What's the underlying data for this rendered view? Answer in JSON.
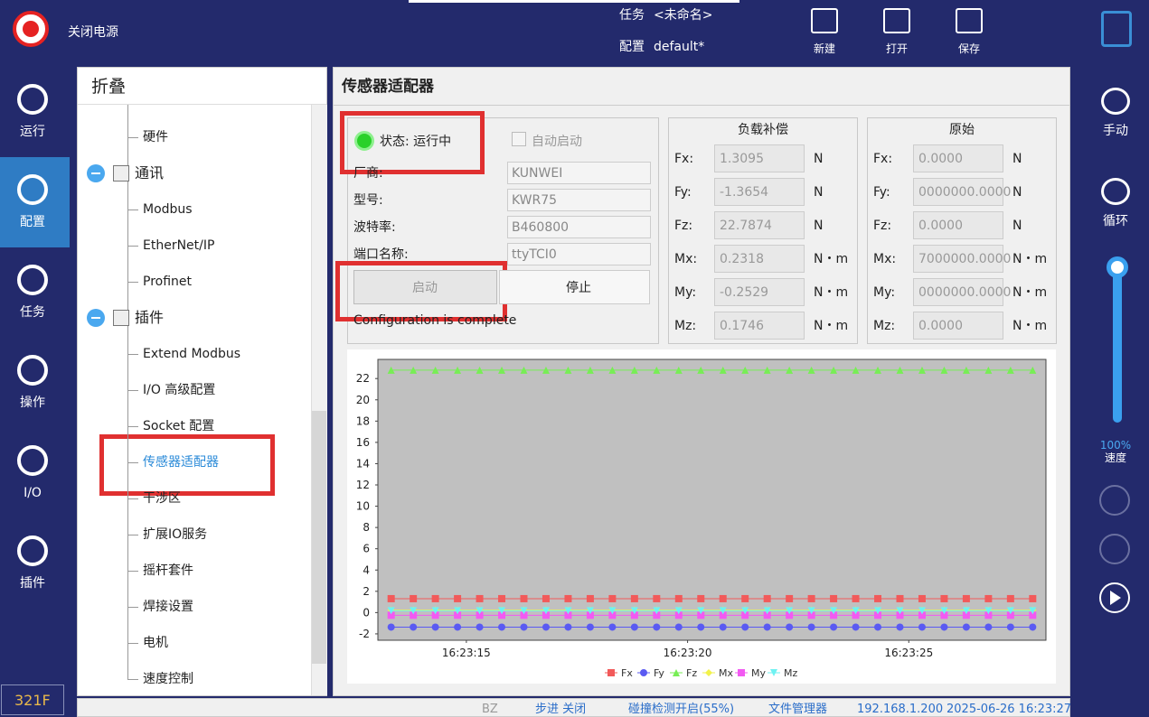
{
  "header": {
    "power_label": "关闭电源",
    "task_label": "任务",
    "task_value": "<未命名>",
    "config_label": "配置",
    "config_value": "default*",
    "buttons": [
      "新建",
      "打开",
      "保存"
    ]
  },
  "nav": {
    "items": [
      "运行",
      "配置",
      "任务",
      "操作",
      "I/O",
      "插件"
    ],
    "selected": 1,
    "version": "321F"
  },
  "right_nav": {
    "items": [
      "手动",
      "循环"
    ],
    "speed_value": "100%",
    "speed_label": "速度"
  },
  "tree": {
    "title": "折叠",
    "top_items": [
      "硬件"
    ],
    "groups": [
      {
        "label": "通讯",
        "children": [
          "Modbus",
          "EtherNet/IP",
          "Profinet"
        ]
      },
      {
        "label": "插件",
        "children": [
          "Extend Modbus",
          "I/O 高级配置",
          "Socket 配置",
          "传感器适配器",
          "干涉区",
          "扩展IO服务",
          "摇杆套件",
          "焊接设置",
          "电机",
          "速度控制"
        ],
        "selected_child": 3
      }
    ]
  },
  "panel": {
    "title": "传感器适配器",
    "status": "状态: 运行中",
    "auto_start": "自动启动",
    "fields": [
      {
        "label": "厂商:",
        "value": "KUNWEI"
      },
      {
        "label": "型号:",
        "value": "KWR75"
      },
      {
        "label": "波特率:",
        "value": "B460800"
      },
      {
        "label": "端口名称:",
        "value": "ttyTCI0"
      }
    ],
    "start_button": "启动",
    "stop_button": "停止",
    "message": "Configuration is complete",
    "compensation": {
      "title": "负载补偿",
      "rows": [
        {
          "label": "Fx:",
          "value": "1.3095",
          "unit": "N"
        },
        {
          "label": "Fy:",
          "value": "-1.3654",
          "unit": "N"
        },
        {
          "label": "Fz:",
          "value": "22.7874",
          "unit": "N"
        },
        {
          "label": "Mx:",
          "value": "0.2318",
          "unit": "N・m"
        },
        {
          "label": "My:",
          "value": "-0.2529",
          "unit": "N・m"
        },
        {
          "label": "Mz:",
          "value": "0.1746",
          "unit": "N・m"
        }
      ]
    },
    "raw": {
      "title": "原始",
      "rows": [
        {
          "label": "Fx:",
          "value": "0.0000",
          "unit": "N"
        },
        {
          "label": "Fy:",
          "value": "0000000.0000",
          "unit": "N"
        },
        {
          "label": "Fz:",
          "value": "0.0000",
          "unit": "N"
        },
        {
          "label": "Mx:",
          "value": "7000000.0000",
          "unit": "N・m"
        },
        {
          "label": "My:",
          "value": "0000000.0000",
          "unit": "N・m"
        },
        {
          "label": "Mz:",
          "value": "0.0000",
          "unit": "N・m"
        }
      ]
    }
  },
  "chart_data": {
    "type": "line",
    "x": [
      59593.3,
      59593.8,
      59594.3,
      59594.8,
      59595.3,
      59595.8,
      59596.3,
      59596.8,
      59597.3,
      59597.8,
      59598.3,
      59598.8,
      59599.3,
      59599.8,
      59600.3,
      59600.8,
      59601.3,
      59601.8,
      59602.3,
      59602.8,
      59603.3,
      59603.8,
      59604.3,
      59604.8,
      59605.3,
      59605.8,
      59606.3,
      59606.8,
      59607.3,
      59607.8
    ],
    "xlim": [
      59593.0,
      59608.1
    ],
    "xticks": [
      {
        "value": 59595,
        "label": "16:23:15"
      },
      {
        "value": 59600,
        "label": "16:23:20"
      },
      {
        "value": 59605,
        "label": "16:23:25"
      }
    ],
    "ylim": [
      -2.6,
      23.8
    ],
    "yticks": [
      -2,
      0,
      2,
      4,
      6,
      8,
      10,
      12,
      14,
      16,
      18,
      20,
      22
    ],
    "series": [
      {
        "name": "Fx",
        "color": "#f25a5a",
        "marker": "square",
        "values": [
          1.3095,
          1.3095,
          1.3095,
          1.3095,
          1.3095,
          1.3095,
          1.3095,
          1.3095,
          1.3095,
          1.3095,
          1.3095,
          1.3095,
          1.3095,
          1.3095,
          1.3095,
          1.3095,
          1.3095,
          1.3095,
          1.3095,
          1.3095,
          1.3095,
          1.3095,
          1.3095,
          1.3095,
          1.3095,
          1.3095,
          1.3095,
          1.3095,
          1.3095,
          1.3095
        ]
      },
      {
        "name": "Fy",
        "color": "#5a5af2",
        "marker": "circle",
        "values": [
          -1.3654,
          -1.3654,
          -1.3654,
          -1.3654,
          -1.3654,
          -1.3654,
          -1.3654,
          -1.3654,
          -1.3654,
          -1.3654,
          -1.3654,
          -1.3654,
          -1.3654,
          -1.3654,
          -1.3654,
          -1.3654,
          -1.3654,
          -1.3654,
          -1.3654,
          -1.3654,
          -1.3654,
          -1.3654,
          -1.3654,
          -1.3654,
          -1.3654,
          -1.3654,
          -1.3654,
          -1.3654,
          -1.3654,
          -1.3654
        ]
      },
      {
        "name": "Fz",
        "color": "#77ee55",
        "marker": "triangle",
        "values": [
          22.7874,
          22.7874,
          22.7874,
          22.7874,
          22.7874,
          22.7874,
          22.7874,
          22.7874,
          22.7874,
          22.7874,
          22.7874,
          22.7874,
          22.7874,
          22.7874,
          22.7874,
          22.7874,
          22.7874,
          22.7874,
          22.7874,
          22.7874,
          22.7874,
          22.7874,
          22.7874,
          22.7874,
          22.7874,
          22.7874,
          22.7874,
          22.7874,
          22.7874,
          22.7874
        ]
      },
      {
        "name": "Mx",
        "color": "#f2f24a",
        "marker": "diamond",
        "values": [
          0.2318,
          0.2318,
          0.2318,
          0.2318,
          0.2318,
          0.2318,
          0.2318,
          0.2318,
          0.2318,
          0.2318,
          0.2318,
          0.2318,
          0.2318,
          0.2318,
          0.2318,
          0.2318,
          0.2318,
          0.2318,
          0.2318,
          0.2318,
          0.2318,
          0.2318,
          0.2318,
          0.2318,
          0.2318,
          0.2318,
          0.2318,
          0.2318,
          0.2318,
          0.2318
        ]
      },
      {
        "name": "My",
        "color": "#f25af2",
        "marker": "square",
        "values": [
          -0.2529,
          -0.2529,
          -0.2529,
          -0.2529,
          -0.2529,
          -0.2529,
          -0.2529,
          -0.2529,
          -0.2529,
          -0.2529,
          -0.2529,
          -0.2529,
          -0.2529,
          -0.2529,
          -0.2529,
          -0.2529,
          -0.2529,
          -0.2529,
          -0.2529,
          -0.2529,
          -0.2529,
          -0.2529,
          -0.2529,
          -0.2529,
          -0.2529,
          -0.2529,
          -0.2529,
          -0.2529,
          -0.2529,
          -0.2529
        ]
      },
      {
        "name": "Mz",
        "color": "#6ef2f2",
        "marker": "triangle-down",
        "values": [
          0.1746,
          0.1746,
          0.1746,
          0.1746,
          0.1746,
          0.1746,
          0.1746,
          0.1746,
          0.1746,
          0.1746,
          0.1746,
          0.1746,
          0.1746,
          0.1746,
          0.1746,
          0.1746,
          0.1746,
          0.1746,
          0.1746,
          0.1746,
          0.1746,
          0.1746,
          0.1746,
          0.1746,
          0.1746,
          0.1746,
          0.1746,
          0.1746,
          0.1746,
          0.1746
        ]
      }
    ]
  },
  "status_bar": {
    "items": [
      "BZ",
      "步进 关闭",
      "碰撞检测开启(55%)",
      "文件管理器",
      "192.168.1.200",
      "2025-06-26 16:23:27"
    ]
  }
}
